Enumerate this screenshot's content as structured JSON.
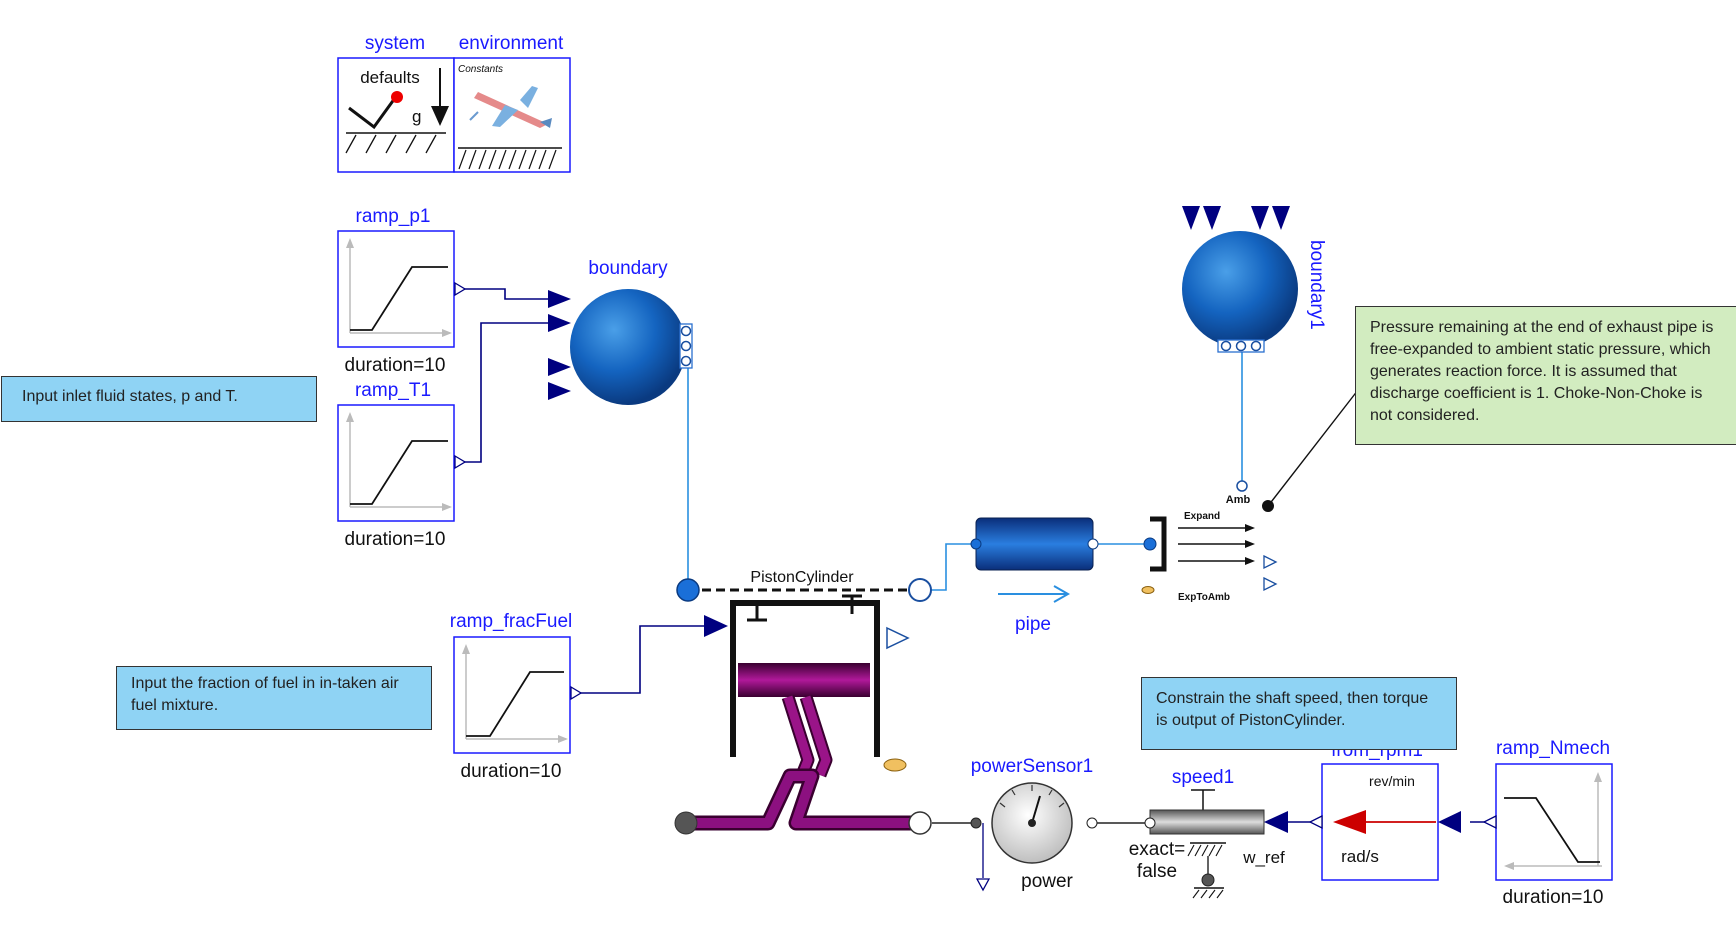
{
  "components": {
    "system": {
      "name": "system",
      "icon_text": "defaults",
      "symbol": "g"
    },
    "environment": {
      "name": "environment",
      "icon_text": "Constants"
    },
    "ramp_p1": {
      "name": "ramp_p1",
      "param": "duration=10"
    },
    "ramp_T1": {
      "name": "ramp_T1",
      "param": "duration=10"
    },
    "ramp_fracFuel": {
      "name": "ramp_fracFuel",
      "param": "duration=10"
    },
    "ramp_Nmech": {
      "name": "ramp_Nmech",
      "param": "duration=10"
    },
    "boundary": {
      "name": "boundary"
    },
    "boundary1": {
      "name": "boundary1",
      "port_label": "Amb"
    },
    "piston": {
      "name": "PistonCylinder"
    },
    "pipe": {
      "name": "pipe"
    },
    "exp": {
      "name": "ExpToAmb",
      "top_label": "Expand"
    },
    "powerSensor": {
      "name": "powerSensor1",
      "label": "power"
    },
    "speed": {
      "name": "speed1",
      "exact_line1": "exact=",
      "exact_line2": "false",
      "w_ref": "w_ref"
    },
    "from_rpm": {
      "name": "from_rpm1",
      "top_label": "rev/min",
      "bottom_label": "rad/s"
    }
  },
  "notes": {
    "inlet": "Input inlet fluid states, p and T.",
    "fuel": "Input the fraction of fuel in in-taken air fuel mixture.",
    "pressure": "Pressure remaining at the end of exhaust pipe is free-expanded to ambient static pressure, which generates reaction force. It is assumed that discharge coefficient is 1. Choke-Non-Choke is not considered.",
    "shaft": "Constrain the shaft speed, then torque is output of PistonCylinder."
  },
  "colors": {
    "label_blue": "#1a1aff",
    "connector_blue": "#000080",
    "fluid_line": "#2a8fe0",
    "note_blue": "#8fd3f4",
    "note_green": "#d2ecc0",
    "crank_purple": "#7a0b6e"
  }
}
